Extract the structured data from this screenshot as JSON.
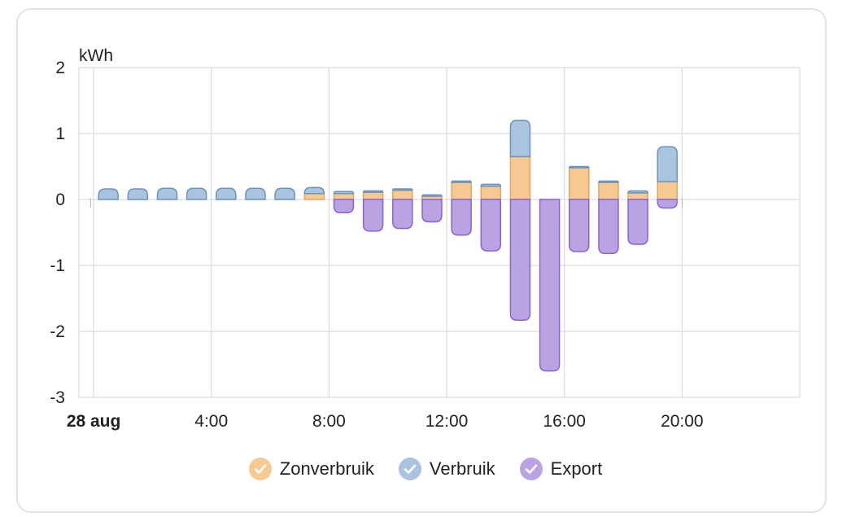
{
  "chart_data": {
    "type": "bar",
    "stacked": true,
    "ylabel": "kWh",
    "ylim": [
      -3,
      2
    ],
    "yticks": [
      "2",
      "1",
      "0",
      "-1",
      "-2",
      "-3"
    ],
    "xtick_labels": [
      {
        "hour": 0,
        "label": "28 aug",
        "bold": true
      },
      {
        "hour": 4,
        "label": "4:00",
        "bold": false
      },
      {
        "hour": 8,
        "label": "8:00",
        "bold": false
      },
      {
        "hour": 12,
        "label": "12:00",
        "bold": false
      },
      {
        "hour": 16,
        "label": "16:00",
        "bold": false
      },
      {
        "hour": 20,
        "label": "20:00",
        "bold": false
      }
    ],
    "x_range_hours": [
      -0.5,
      24
    ],
    "grid": true,
    "legend_position": "bottom",
    "hours": [
      0,
      1,
      2,
      3,
      4,
      5,
      6,
      7,
      8,
      9,
      10,
      11,
      12,
      13,
      14,
      15,
      16,
      17,
      18,
      19
    ],
    "series": [
      {
        "name": "Zonverbruik",
        "color": "#f6c892",
        "stroke": "#e8a55c",
        "values": [
          0,
          0,
          0,
          0,
          0,
          0,
          0,
          0.09,
          0.09,
          0.11,
          0.14,
          0.05,
          0.26,
          0.2,
          0.65,
          0,
          0.48,
          0.26,
          0.1,
          0.27
        ]
      },
      {
        "name": "Verbruik",
        "color": "#aac4df",
        "stroke": "#6a93bf",
        "values": [
          0.16,
          0.16,
          0.17,
          0.17,
          0.17,
          0.17,
          0.17,
          0.09,
          0.03,
          0.02,
          0.02,
          0.02,
          0.02,
          0.03,
          0.55,
          0,
          0.02,
          0.02,
          0.03,
          0.53
        ]
      },
      {
        "name": "Export",
        "color": "#b9a3e2",
        "stroke": "#8a63cf",
        "values": [
          0,
          0,
          0,
          0,
          0,
          0,
          0,
          0,
          -0.2,
          -0.48,
          -0.44,
          -0.34,
          -0.54,
          -0.78,
          -1.83,
          -2.6,
          -0.79,
          -0.82,
          -0.68,
          -0.13
        ]
      }
    ]
  }
}
